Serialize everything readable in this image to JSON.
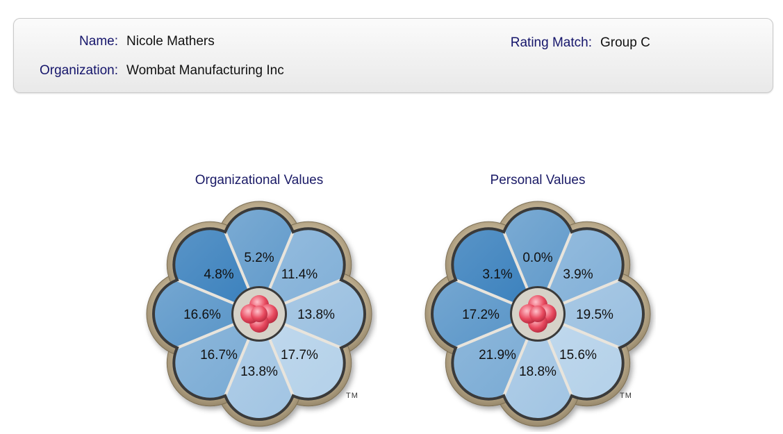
{
  "profile": {
    "name_label": "Name:",
    "name_value": "Nicole Mathers",
    "organization_label": "Organization:",
    "organization_value": "Wombat Manufacturing Inc",
    "rating_label": "Rating Match:",
    "rating_value": "Group C"
  },
  "charts": {
    "organizational": {
      "title": "Organizational Values",
      "trademark": "TM"
    },
    "personal": {
      "title": "Personal Values",
      "trademark": "TM"
    }
  },
  "colors": {
    "petal_dark": "#1f6fb3",
    "petal_light": "#c5dcf0",
    "petal_outline": "#3a3a3a",
    "frame_gold": "#b9a98a",
    "center_red": "#e84a5f",
    "label_navy": "#15156b"
  },
  "chart_data": [
    {
      "type": "pie",
      "title": "Organizational Values",
      "categories": [
        "top",
        "top-right",
        "right",
        "bottom-right",
        "bottom",
        "bottom-left",
        "left",
        "top-left"
      ],
      "values": [
        5.2,
        11.4,
        13.8,
        17.7,
        13.8,
        16.7,
        16.6,
        4.8
      ],
      "labels": [
        "5.2%",
        "11.4%",
        "13.8%",
        "17.7%",
        "13.8%",
        "16.7%",
        "16.6%",
        "4.8%"
      ]
    },
    {
      "type": "pie",
      "title": "Personal Values",
      "categories": [
        "top",
        "top-right",
        "right",
        "bottom-right",
        "bottom",
        "bottom-left",
        "left",
        "top-left"
      ],
      "values": [
        0.0,
        3.9,
        19.5,
        15.6,
        18.8,
        21.9,
        17.2,
        3.1
      ],
      "labels": [
        "0.0%",
        "3.9%",
        "19.5%",
        "15.6%",
        "18.8%",
        "21.9%",
        "17.2%",
        "3.1%"
      ]
    }
  ]
}
